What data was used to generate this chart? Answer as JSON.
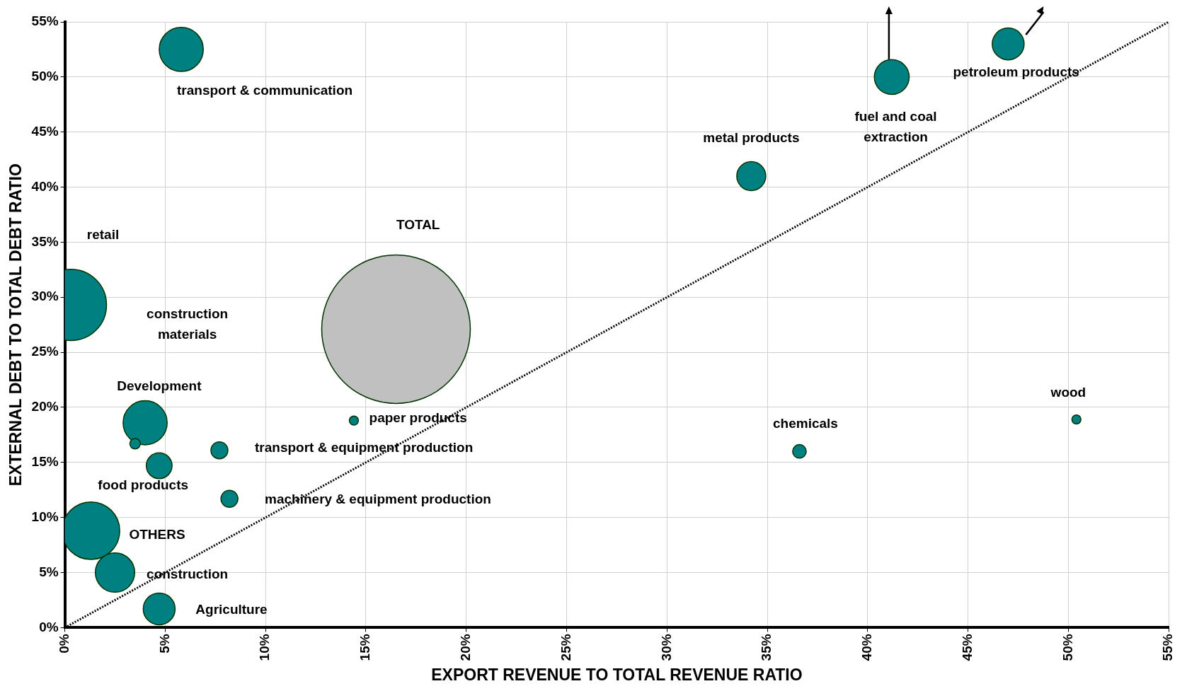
{
  "chart_data": {
    "type": "bubble",
    "xlabel": "EXPORT REVENUE TO TOTAL REVENUE RATIO",
    "ylabel": "EXTERNAL DEBT TO TOTAL DEBT RATIO",
    "xlim": [
      0,
      55
    ],
    "ylim": [
      0,
      55
    ],
    "xticks": [
      {
        "value": 0,
        "label": "0%"
      },
      {
        "value": 5,
        "label": "5%"
      },
      {
        "value": 10,
        "label": "10%"
      },
      {
        "value": 15,
        "label": "15%"
      },
      {
        "value": 20,
        "label": "20%"
      },
      {
        "value": 25,
        "label": "25%"
      },
      {
        "value": 30,
        "label": "30%"
      },
      {
        "value": 35,
        "label": "35%"
      },
      {
        "value": 40,
        "label": "40%"
      },
      {
        "value": 45,
        "label": "45%"
      },
      {
        "value": 50,
        "label": "50%"
      },
      {
        "value": 55,
        "label": "55%"
      }
    ],
    "yticks": [
      {
        "value": 0,
        "label": "0%"
      },
      {
        "value": 5,
        "label": "5%"
      },
      {
        "value": 10,
        "label": "10%"
      },
      {
        "value": 15,
        "label": "15%"
      },
      {
        "value": 20,
        "label": "20%"
      },
      {
        "value": 25,
        "label": "25%"
      },
      {
        "value": 30,
        "label": "30%"
      },
      {
        "value": 35,
        "label": "35%"
      },
      {
        "value": 40,
        "label": "40%"
      },
      {
        "value": 45,
        "label": "45%"
      },
      {
        "value": 50,
        "label": "50%"
      },
      {
        "value": 55,
        "label": "55%"
      }
    ],
    "grid": true,
    "legend": false,
    "series": [
      {
        "x": [
          5.8,
          47.0,
          41.2,
          34.2,
          0.3,
          16.5,
          4.0,
          3.5,
          4.7,
          7.7,
          8.2,
          14.4,
          1.3,
          2.5,
          4.7,
          36.6,
          50.4
        ],
        "values": [
          52.5,
          53.0,
          50.0,
          41.0,
          29.3,
          27.1,
          18.6,
          16.7,
          14.7,
          16.1,
          11.7,
          18.8,
          8.8,
          5.0,
          1.7,
          16.0,
          18.9
        ],
        "sizes": [
          0.088,
          0.046,
          0.055,
          0.038,
          0.23,
          1,
          0.088,
          0.005,
          0.03,
          0.013,
          0.013,
          0.0037,
          0.15,
          0.07,
          0.046,
          0.0084,
          0.0037
        ],
        "colors": [
          "#008080",
          "#008080",
          "#008080",
          "#008080",
          "#008080",
          "#c0c0c0",
          "#008080",
          "#008080",
          "#008080",
          "#008080",
          "#008080",
          "#008080",
          "#008080",
          "#008080",
          "#008080",
          "#008080",
          "#008080"
        ]
      },
      {
        "type": "line",
        "x": [
          0,
          55
        ],
        "values": [
          0,
          55
        ],
        "color": "#000000",
        "line_style": "dotted",
        "marker": "none"
      }
    ],
    "annotations": [
      {
        "text": "transport & communication",
        "x": 5.8,
        "y": 52.5
      },
      {
        "text": "petroleum products",
        "x": 47.0,
        "y": 53.0
      },
      {
        "text": "fuel and coal\nextraction",
        "x": 41.2,
        "y": 50.0
      },
      {
        "text": "metal products",
        "x": 34.2,
        "y": 41.0
      },
      "retail",
      "construction\nmaterials",
      "TOTAL",
      {
        "text": "Development",
        "x": 4.0,
        "y": 18.6
      },
      {
        "text": "paper products",
        "x": 14.4,
        "y": 18.8
      },
      {
        "text": "transport & equipment production",
        "x": 7.7,
        "y": 16.1
      },
      {
        "text": "food products",
        "x": 4.7,
        "y": 14.7
      },
      {
        "text": "machinery & equipment production",
        "x": 8.2,
        "y": 11.7
      },
      {
        "text": "OTHERS",
        "x": 1.3,
        "y": 8.8
      },
      {
        "text": "construction",
        "x": 2.5,
        "y": 5.0
      },
      {
        "text": "Agriculture",
        "x": 4.7,
        "y": 1.7
      },
      {
        "text": "chemicals",
        "x": 36.6,
        "y": 16.0
      },
      {
        "text": "wood",
        "x": 50.4,
        "y": 18.9
      }
    ]
  }
}
